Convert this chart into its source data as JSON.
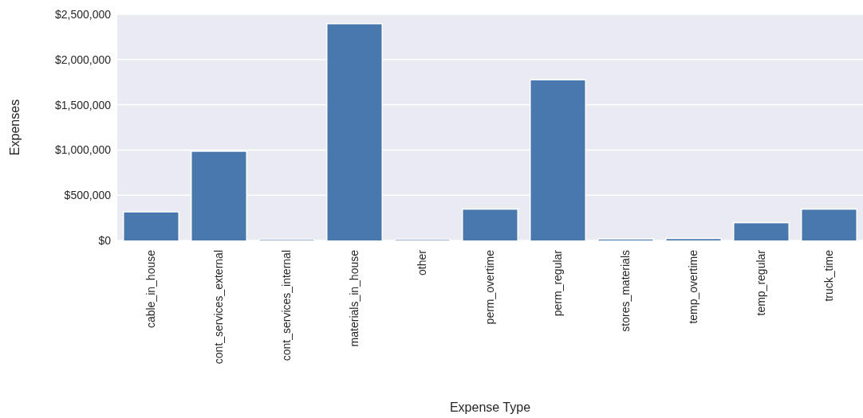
{
  "chart_data": {
    "type": "bar",
    "xlabel": "Expense Type",
    "ylabel": "Expenses",
    "categories": [
      "cable_in_house",
      "cont_services_external",
      "cont_services_internal",
      "materials_in_house",
      "other",
      "perm_overtime",
      "perm_regular",
      "stores_materials",
      "temp_overtime",
      "temp_regular",
      "truck_time"
    ],
    "values": [
      310000,
      980000,
      5000,
      2390000,
      5000,
      340000,
      1770000,
      10000,
      15000,
      190000,
      340000
    ],
    "color": "#4878ae",
    "ylim": [
      0,
      2500000
    ],
    "yticks": [
      {
        "value": 0,
        "label": "$0"
      },
      {
        "value": 500000,
        "label": "$500,000"
      },
      {
        "value": 1000000,
        "label": "$1,000,000"
      },
      {
        "value": 1500000,
        "label": "$1,500,000"
      },
      {
        "value": 2000000,
        "label": "$2,000,000"
      },
      {
        "value": 2500000,
        "label": "$2,500,000"
      }
    ],
    "grid": "y"
  }
}
